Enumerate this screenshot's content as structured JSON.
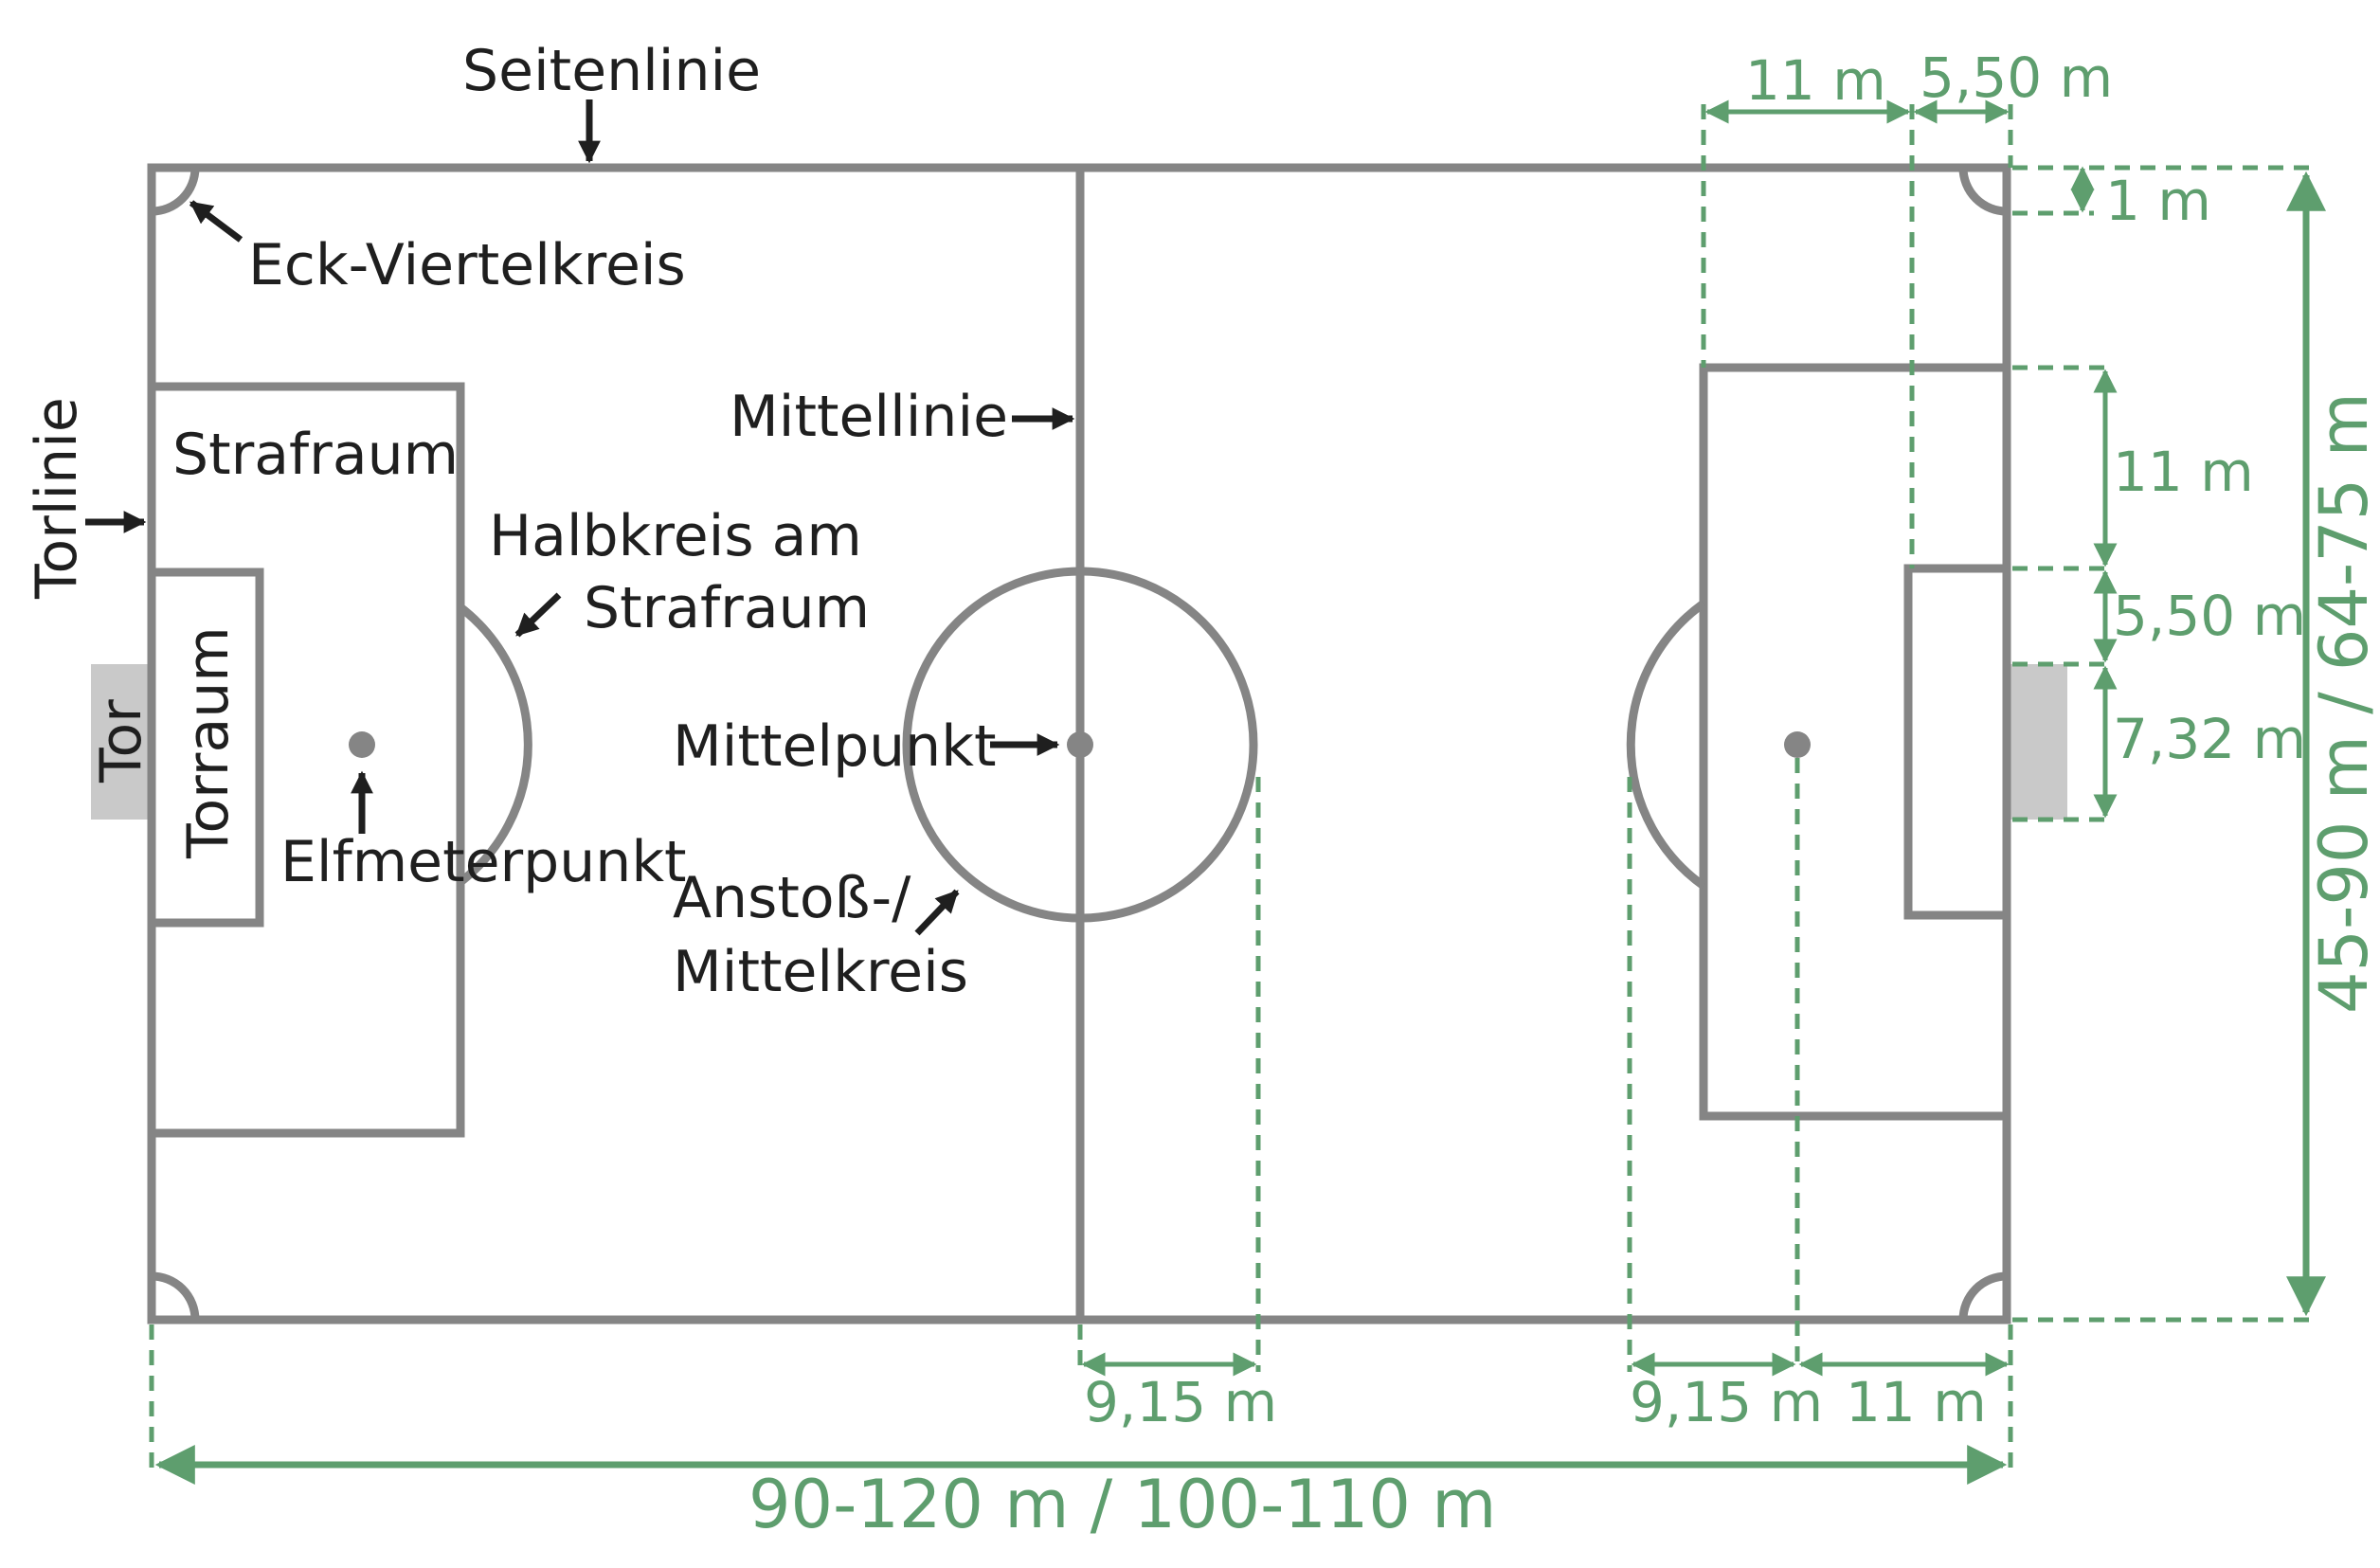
{
  "labels": {
    "seitenlinie": "Seitenlinie",
    "eck_viertelkreis": "Eck-Viertelkreis",
    "torlinie": "Torlinie",
    "strafraum": "Strafraum",
    "torraum": "Torraum",
    "tor": "Tor",
    "elfmeterpunkt": "Elfmeterpunkt",
    "halbkreis_line1": "Halbkreis am",
    "halbkreis_line2": "Strafraum",
    "mittellinie": "Mittellinie",
    "mittelpunkt": "Mittelpunkt",
    "anstoss_line1": "Anstoß-/",
    "anstoss_line2": "Mittelkreis"
  },
  "dimensions": {
    "penalty_depth": "11 m",
    "goal_area_depth": "5,50 m",
    "corner_radius": "1 m",
    "penalty_offset": "11 m",
    "goal_area_offset": "5,50 m",
    "goal_width": "7,32 m",
    "center_radius": "9,15 m",
    "arc_radius": "9,15 m",
    "penalty_spot_distance": "11 m",
    "field_length": "90-120 m / 100-110 m",
    "field_width": "45-90 m / 64-75 m"
  },
  "colors": {
    "field_lines": "#858585",
    "dimension_green": "#5e9e6e",
    "goal_fill": "#c9c9c9",
    "label_text": "#1f1f1f"
  }
}
